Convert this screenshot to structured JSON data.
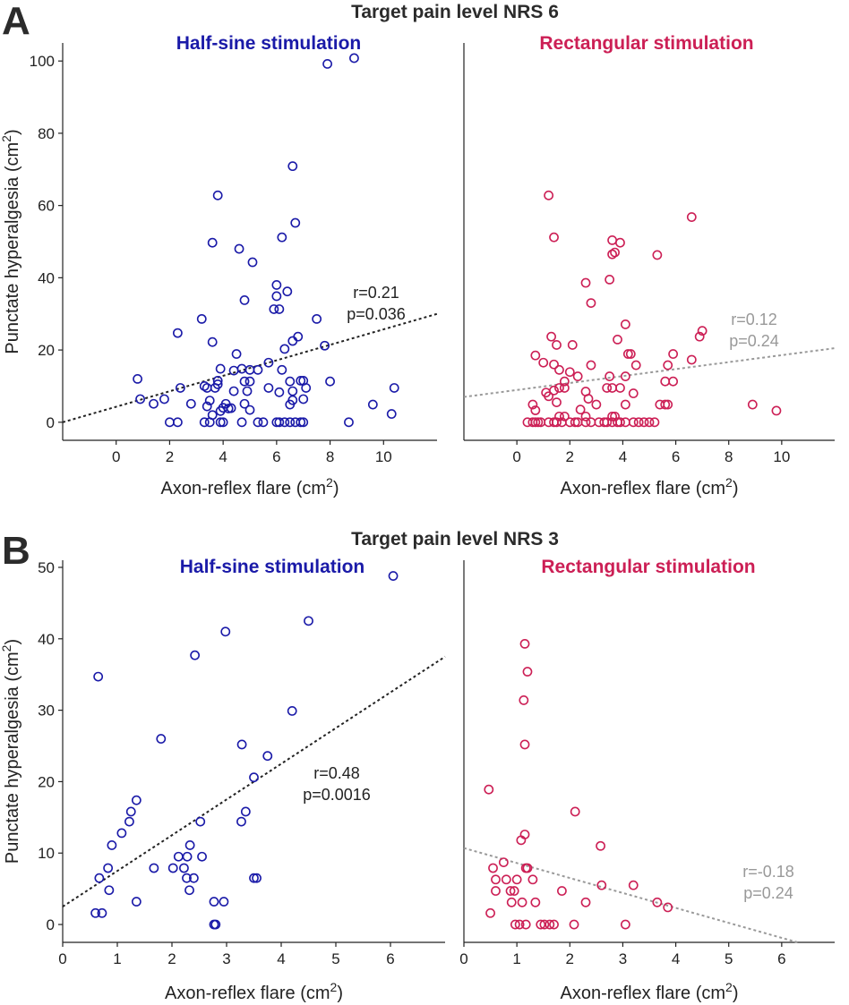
{
  "figure": {
    "panel_a_letter": "A",
    "panel_b_letter": "B",
    "colors": {
      "blue": "#1a1aa8",
      "red": "#cc1f55",
      "grey": "#999999",
      "black": "#222222"
    }
  },
  "chart_data": [
    {
      "id": "A-half-sine",
      "type": "scatter",
      "section_title": "Target pain level NRS 6",
      "title": "Half-sine stimulation",
      "color": "blue",
      "xlabel": "Axon-reflex flare (cm2)",
      "ylabel": "Punctate hyperalgesia (cm2)",
      "xlim": [
        -2,
        12
      ],
      "ylim": [
        -5,
        105
      ],
      "xticks": [
        0,
        2,
        4,
        6,
        8,
        10
      ],
      "yticks": [
        0,
        20,
        40,
        60,
        80,
        100
      ],
      "regression": {
        "x0": -2,
        "y0": 0,
        "x1": 12,
        "y1": 30,
        "color": "black"
      },
      "stat_color": "black",
      "r_text": "r=0.21",
      "p_text": "p=0.036",
      "points": [
        [
          7.9,
          99.2
        ],
        [
          8.9,
          100.8
        ],
        [
          6.6,
          70.9
        ],
        [
          3.8,
          62.8
        ],
        [
          6.7,
          55.2
        ],
        [
          6.2,
          51.2
        ],
        [
          3.6,
          49.7
        ],
        [
          4.6,
          48.0
        ],
        [
          5.1,
          44.3
        ],
        [
          6.0,
          38.0
        ],
        [
          6.4,
          36.2
        ],
        [
          4.8,
          33.8
        ],
        [
          6.0,
          34.9
        ],
        [
          5.9,
          31.3
        ],
        [
          6.1,
          31.3
        ],
        [
          3.2,
          28.6
        ],
        [
          7.5,
          28.6
        ],
        [
          2.3,
          24.7
        ],
        [
          6.8,
          23.7
        ],
        [
          6.6,
          22.5
        ],
        [
          3.6,
          22.2
        ],
        [
          7.8,
          21.2
        ],
        [
          6.3,
          20.3
        ],
        [
          4.5,
          18.9
        ],
        [
          5.7,
          16.5
        ],
        [
          3.9,
          14.8
        ],
        [
          4.4,
          14.3
        ],
        [
          4.7,
          14.8
        ],
        [
          5.0,
          14.5
        ],
        [
          5.3,
          14.5
        ],
        [
          6.2,
          14.5
        ],
        [
          0.8,
          12.0
        ],
        [
          3.8,
          11.5
        ],
        [
          3.8,
          10.5
        ],
        [
          4.8,
          11.3
        ],
        [
          5.0,
          11.3
        ],
        [
          6.5,
          11.3
        ],
        [
          6.9,
          11.5
        ],
        [
          7.0,
          11.5
        ],
        [
          8.0,
          11.3
        ],
        [
          3.3,
          10.0
        ],
        [
          3.4,
          9.5
        ],
        [
          3.7,
          9.5
        ],
        [
          5.7,
          9.5
        ],
        [
          7.1,
          9.5
        ],
        [
          10.4,
          9.5
        ],
        [
          2.4,
          9.5
        ],
        [
          4.4,
          8.6
        ],
        [
          4.9,
          8.6
        ],
        [
          6.1,
          8.3
        ],
        [
          6.6,
          8.6
        ],
        [
          0.9,
          6.4
        ],
        [
          1.8,
          6.4
        ],
        [
          4.1,
          5.1
        ],
        [
          4.8,
          5.1
        ],
        [
          6.6,
          6.1
        ],
        [
          7.0,
          6.4
        ],
        [
          3.5,
          6.0
        ],
        [
          1.4,
          5.1
        ],
        [
          2.8,
          5.1
        ],
        [
          9.6,
          4.9
        ],
        [
          3.4,
          4.4
        ],
        [
          4.0,
          4.0
        ],
        [
          4.3,
          3.9
        ],
        [
          6.5,
          4.9
        ],
        [
          3.9,
          3.1
        ],
        [
          5.0,
          3.4
        ],
        [
          3.6,
          2.0
        ],
        [
          10.3,
          2.3
        ],
        [
          4.2,
          3.8
        ],
        [
          2.0,
          0.0
        ],
        [
          2.3,
          0.0
        ],
        [
          3.3,
          0.0
        ],
        [
          3.5,
          0.0
        ],
        [
          3.9,
          0.0
        ],
        [
          4.0,
          0.0
        ],
        [
          4.7,
          0.0
        ],
        [
          5.3,
          0.0
        ],
        [
          5.5,
          0.0
        ],
        [
          6.0,
          0.0
        ],
        [
          6.1,
          0.0
        ],
        [
          6.3,
          0.0
        ],
        [
          6.5,
          0.0
        ],
        [
          6.7,
          0.0
        ],
        [
          6.9,
          0.0
        ],
        [
          7.0,
          0.0
        ],
        [
          8.7,
          0.0
        ]
      ]
    },
    {
      "id": "A-rectangular",
      "type": "scatter",
      "section_title": "",
      "title": "Rectangular stimulation",
      "color": "red",
      "xlabel": "Axon-reflex flare (cm2)",
      "ylabel": "",
      "xlim": [
        -2,
        12
      ],
      "ylim": [
        -5,
        105
      ],
      "xticks": [
        0,
        2,
        4,
        6,
        8,
        10
      ],
      "yticks": [],
      "regression": {
        "x0": -2,
        "y0": 7,
        "x1": 12,
        "y1": 20.5,
        "color": "grey"
      },
      "stat_color": "grey",
      "r_text": "r=0.12",
      "p_text": "p=0.24",
      "points": [
        [
          1.2,
          62.8
        ],
        [
          6.6,
          56.8
        ],
        [
          1.4,
          51.2
        ],
        [
          3.6,
          50.4
        ],
        [
          3.9,
          49.7
        ],
        [
          3.7,
          47.0
        ],
        [
          3.6,
          46.5
        ],
        [
          5.3,
          46.3
        ],
        [
          3.5,
          39.5
        ],
        [
          2.6,
          38.6
        ],
        [
          2.8,
          33.0
        ],
        [
          4.1,
          27.1
        ],
        [
          7.0,
          25.3
        ],
        [
          6.9,
          23.7
        ],
        [
          1.3,
          23.7
        ],
        [
          3.8,
          22.9
        ],
        [
          1.5,
          21.4
        ],
        [
          2.1,
          21.4
        ],
        [
          0.7,
          18.5
        ],
        [
          4.3,
          18.9
        ],
        [
          4.2,
          18.9
        ],
        [
          5.9,
          18.9
        ],
        [
          6.6,
          17.3
        ],
        [
          1.0,
          16.5
        ],
        [
          1.4,
          16.0
        ],
        [
          4.5,
          15.8
        ],
        [
          2.8,
          15.8
        ],
        [
          5.7,
          15.8
        ],
        [
          1.6,
          14.5
        ],
        [
          2.0,
          13.9
        ],
        [
          3.5,
          12.7
        ],
        [
          4.1,
          12.7
        ],
        [
          1.8,
          11.3
        ],
        [
          2.3,
          12.7
        ],
        [
          5.6,
          11.3
        ],
        [
          5.9,
          11.3
        ],
        [
          1.6,
          9.5
        ],
        [
          1.8,
          9.5
        ],
        [
          3.4,
          9.5
        ],
        [
          3.6,
          9.5
        ],
        [
          3.9,
          9.5
        ],
        [
          1.4,
          8.8
        ],
        [
          2.6,
          8.5
        ],
        [
          1.1,
          8.2
        ],
        [
          4.4,
          8.0
        ],
        [
          1.2,
          7.2
        ],
        [
          2.7,
          6.5
        ],
        [
          1.5,
          5.5
        ],
        [
          0.6,
          4.9
        ],
        [
          5.4,
          4.9
        ],
        [
          5.7,
          4.9
        ],
        [
          5.6,
          4.9
        ],
        [
          4.1,
          4.9
        ],
        [
          3.0,
          4.9
        ],
        [
          8.9,
          4.9
        ],
        [
          9.8,
          3.2
        ],
        [
          2.4,
          3.5
        ],
        [
          0.7,
          3.3
        ],
        [
          1.6,
          1.6
        ],
        [
          1.8,
          1.6
        ],
        [
          2.6,
          1.6
        ],
        [
          3.6,
          1.6
        ],
        [
          3.7,
          1.6
        ],
        [
          0.4,
          0.0
        ],
        [
          0.6,
          0.0
        ],
        [
          0.7,
          0.0
        ],
        [
          0.8,
          0.0
        ],
        [
          0.9,
          0.0
        ],
        [
          1.2,
          0.0
        ],
        [
          1.4,
          0.0
        ],
        [
          1.5,
          0.0
        ],
        [
          1.7,
          0.0
        ],
        [
          2.0,
          0.0
        ],
        [
          2.2,
          0.0
        ],
        [
          2.3,
          0.0
        ],
        [
          2.6,
          0.0
        ],
        [
          2.8,
          0.0
        ],
        [
          3.1,
          0.0
        ],
        [
          3.3,
          0.0
        ],
        [
          3.4,
          0.0
        ],
        [
          3.6,
          0.0
        ],
        [
          3.8,
          0.0
        ],
        [
          3.9,
          0.0
        ],
        [
          4.1,
          0.0
        ],
        [
          4.4,
          0.0
        ],
        [
          4.6,
          0.0
        ],
        [
          4.8,
          0.0
        ],
        [
          5.0,
          0.0
        ],
        [
          5.2,
          0.0
        ]
      ]
    },
    {
      "id": "B-half-sine",
      "type": "scatter",
      "section_title": "Target pain level NRS 3",
      "title": "Half-sine stimulation",
      "color": "blue",
      "xlabel": "Axon-reflex flare (cm2)",
      "ylabel": "Punctate hyperalgesia (cm2)",
      "xlim": [
        0,
        7
      ],
      "ylim": [
        -2.5,
        51
      ],
      "xticks": [
        0,
        1,
        2,
        3,
        4,
        5,
        6
      ],
      "yticks": [
        0,
        10,
        20,
        30,
        40,
        50
      ],
      "regression": {
        "x0": 0,
        "y0": 2.5,
        "x1": 7,
        "y1": 37.5,
        "color": "black"
      },
      "stat_color": "black",
      "r_text": "r=0.48",
      "p_text": "p=0.0016",
      "points": [
        [
          6.05,
          48.8
        ],
        [
          4.5,
          42.5
        ],
        [
          2.98,
          41.0
        ],
        [
          2.42,
          37.7
        ],
        [
          0.65,
          34.7
        ],
        [
          4.2,
          29.9
        ],
        [
          1.8,
          26.0
        ],
        [
          3.28,
          25.2
        ],
        [
          3.75,
          23.6
        ],
        [
          3.5,
          20.6
        ],
        [
          1.35,
          17.4
        ],
        [
          1.25,
          15.8
        ],
        [
          3.35,
          15.8
        ],
        [
          1.22,
          14.4
        ],
        [
          2.52,
          14.4
        ],
        [
          3.27,
          14.4
        ],
        [
          1.08,
          12.8
        ],
        [
          0.9,
          11.1
        ],
        [
          2.33,
          11.1
        ],
        [
          2.12,
          9.5
        ],
        [
          2.28,
          9.5
        ],
        [
          2.55,
          9.5
        ],
        [
          2.02,
          7.9
        ],
        [
          1.67,
          7.9
        ],
        [
          2.22,
          7.9
        ],
        [
          0.83,
          7.9
        ],
        [
          0.67,
          6.5
        ],
        [
          2.27,
          6.5
        ],
        [
          2.4,
          6.5
        ],
        [
          3.55,
          6.5
        ],
        [
          3.5,
          6.5
        ],
        [
          0.85,
          4.8
        ],
        [
          2.32,
          4.8
        ],
        [
          1.35,
          3.2
        ],
        [
          2.77,
          3.2
        ],
        [
          2.95,
          3.2
        ],
        [
          0.6,
          1.6
        ],
        [
          0.72,
          1.6
        ],
        [
          2.8,
          0.0
        ],
        [
          2.77,
          0.0
        ]
      ]
    },
    {
      "id": "B-rectangular",
      "type": "scatter",
      "section_title": "",
      "title": "Rectangular stimulation",
      "color": "red",
      "xlabel": "Axon-reflex flare (cm2)",
      "ylabel": "",
      "xlim": [
        0,
        7
      ],
      "ylim": [
        -2.5,
        51
      ],
      "xticks": [
        0,
        1,
        2,
        3,
        4,
        5,
        6
      ],
      "yticks": [],
      "regression": {
        "x0": 0,
        "y0": 10.7,
        "x1": 6.3,
        "y1": -2.5,
        "color": "grey"
      },
      "stat_color": "grey",
      "r_text": "r=-0.18",
      "p_text": "p=0.24",
      "points": [
        [
          1.15,
          39.3
        ],
        [
          1.2,
          35.4
        ],
        [
          1.13,
          31.4
        ],
        [
          1.15,
          25.2
        ],
        [
          0.47,
          18.9
        ],
        [
          2.1,
          15.8
        ],
        [
          1.15,
          12.6
        ],
        [
          1.08,
          11.8
        ],
        [
          2.58,
          11.0
        ],
        [
          0.75,
          8.7
        ],
        [
          0.55,
          7.9
        ],
        [
          1.17,
          7.9
        ],
        [
          1.2,
          7.9
        ],
        [
          0.6,
          6.3
        ],
        [
          0.8,
          6.3
        ],
        [
          1.0,
          6.3
        ],
        [
          1.3,
          6.3
        ],
        [
          2.6,
          5.5
        ],
        [
          3.2,
          5.5
        ],
        [
          0.6,
          4.7
        ],
        [
          0.88,
          4.7
        ],
        [
          0.95,
          4.7
        ],
        [
          1.85,
          4.7
        ],
        [
          0.9,
          3.1
        ],
        [
          1.1,
          3.1
        ],
        [
          1.35,
          3.1
        ],
        [
          2.3,
          3.1
        ],
        [
          3.65,
          3.1
        ],
        [
          3.85,
          2.4
        ],
        [
          0.5,
          1.6
        ],
        [
          0.97,
          0.0
        ],
        [
          1.05,
          0.0
        ],
        [
          1.17,
          0.0
        ],
        [
          1.45,
          0.0
        ],
        [
          1.52,
          0.0
        ],
        [
          1.62,
          0.0
        ],
        [
          1.7,
          0.0
        ],
        [
          2.08,
          0.0
        ],
        [
          3.05,
          0.0
        ]
      ]
    }
  ]
}
